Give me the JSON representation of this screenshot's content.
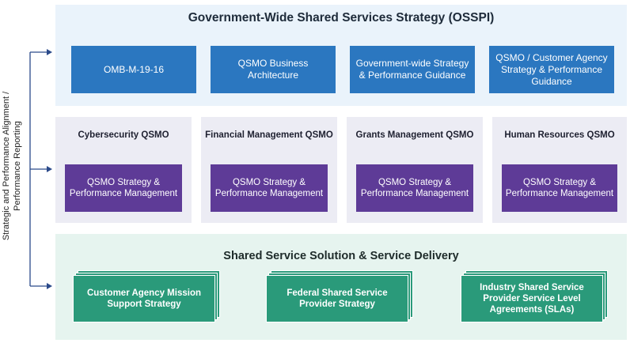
{
  "side_label": {
    "line1": "Strategic and Performance Alignment /",
    "line2": "Performance Reporting"
  },
  "top": {
    "title": "Government-Wide Shared Services Strategy (OSSPI)",
    "boxes": [
      {
        "label": "OMB-M-19-16"
      },
      {
        "label": "QSMO Business Architecture"
      },
      {
        "label": "Government-wide Strategy & Performance Guidance"
      },
      {
        "label": "QSMO / Customer Agency Strategy & Performance Guidance"
      }
    ]
  },
  "middle": {
    "cards": [
      {
        "title": "Cybersecurity QSMO",
        "box": "QSMO Strategy & Performance Management"
      },
      {
        "title": "Financial Management QSMO",
        "box": "QSMO Strategy & Performance Management"
      },
      {
        "title": "Grants Management QSMO",
        "box": "QSMO Strategy & Performance Management"
      },
      {
        "title": "Human Resources QSMO",
        "box": "QSMO Strategy & Performance Management"
      }
    ]
  },
  "bottom": {
    "title": "Shared Service Solution & Service Delivery",
    "stacks": [
      {
        "label": "Customer Agency Mission Support Strategy"
      },
      {
        "label": "Federal Shared Service Provider Strategy"
      },
      {
        "label": "Industry Shared Service Provider Service Level Agreements (SLAs)"
      }
    ]
  },
  "colors": {
    "top_box": "#2b77c0",
    "qsmo_box": "#5e3b97",
    "delivery_box": "#2a9a7a",
    "arrow": "#2b4a8a"
  }
}
